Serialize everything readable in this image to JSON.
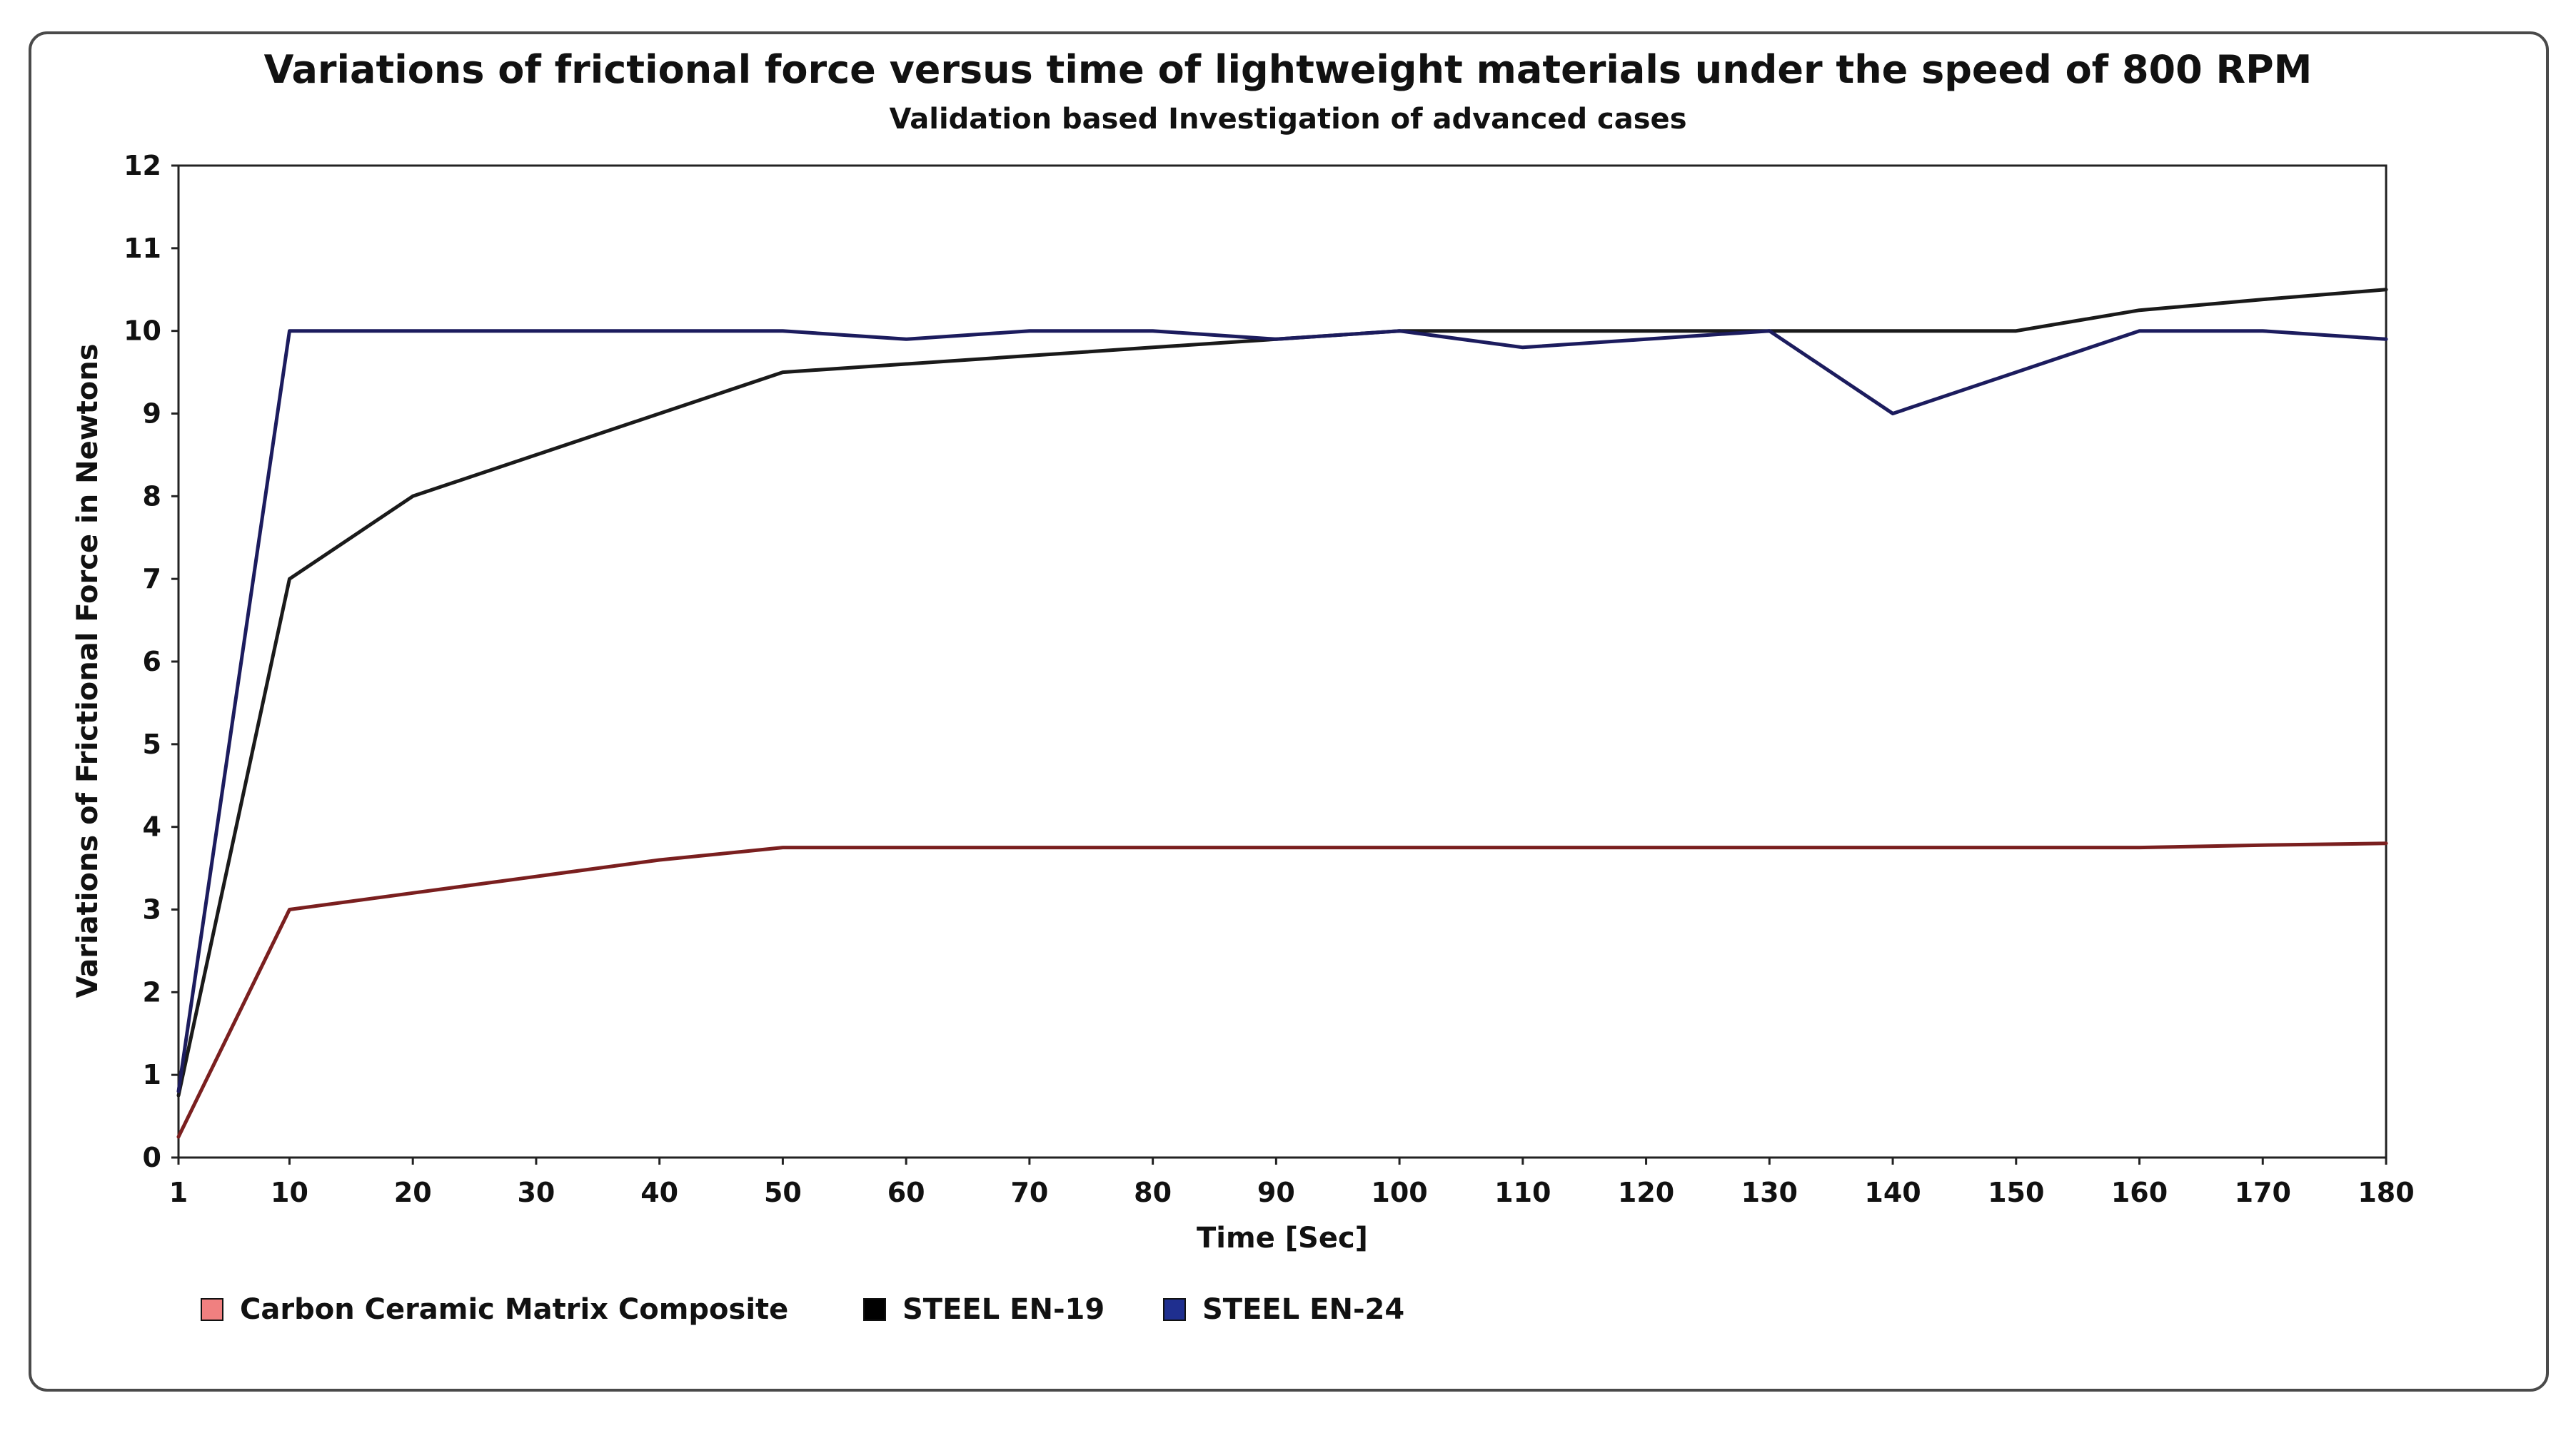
{
  "chart_data": {
    "type": "line",
    "title": "Variations of frictional force versus time of lightweight materials under the speed of 800 RPM",
    "subtitle": "Validation based Investigation of advanced cases",
    "xlabel": "Time [Sec]",
    "ylabel": "Variations of Frictional Force in Newtons",
    "categories": [
      "1",
      "10",
      "20",
      "30",
      "40",
      "50",
      "60",
      "70",
      "80",
      "90",
      "100",
      "110",
      "120",
      "130",
      "140",
      "150",
      "160",
      "170",
      "180"
    ],
    "yticks": [
      "0",
      "1",
      "2",
      "3",
      "4",
      "5",
      "6",
      "7",
      "8",
      "9",
      "10",
      "11",
      "12"
    ],
    "ylim": [
      0,
      12
    ],
    "grid": false,
    "legend_position": "bottom-left",
    "series": [
      {
        "name": "Carbon Ceramic Matrix Composite",
        "line_color": "#7a1f1f",
        "swatch_color": "#f08080",
        "values": [
          0.25,
          3.0,
          3.2,
          3.4,
          3.6,
          3.75,
          3.75,
          3.75,
          3.75,
          3.75,
          3.75,
          3.75,
          3.75,
          3.75,
          3.75,
          3.75,
          3.75,
          3.78,
          3.8
        ]
      },
      {
        "name": "STEEL EN-19",
        "line_color": "#1a1a1a",
        "swatch_color": "#000000",
        "values": [
          0.75,
          7.0,
          8.0,
          8.5,
          9.0,
          9.5,
          9.6,
          9.7,
          9.8,
          9.9,
          10.0,
          10.0,
          10.0,
          10.0,
          10.0,
          10.0,
          10.25,
          10.38,
          10.5
        ]
      },
      {
        "name": "STEEL EN-24",
        "line_color": "#1c1c5e",
        "swatch_color": "#1f2f8f",
        "values": [
          0.8,
          10.0,
          10.0,
          10.0,
          10.0,
          10.0,
          9.9,
          10.0,
          10.0,
          9.9,
          10.0,
          9.8,
          9.9,
          10.0,
          9.0,
          9.5,
          10.0,
          10.0,
          9.9
        ]
      }
    ]
  }
}
